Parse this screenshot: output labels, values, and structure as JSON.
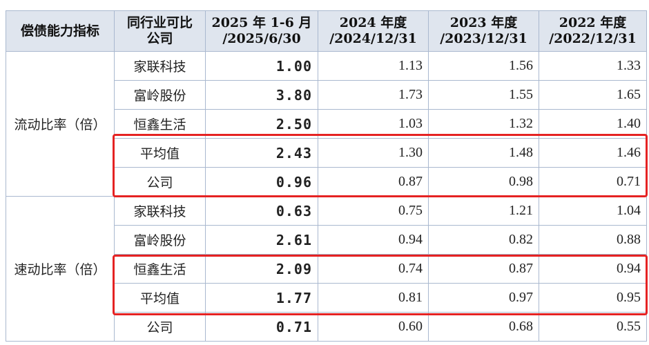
{
  "headers": [
    "偿债能力指标",
    "同行业可比公司",
    "2025 年 1-6 月 /2025/6/30",
    "2024 年度 /2024/12/31",
    "2023 年度 /2023/12/31",
    "2022 年度 /2022/12/31"
  ],
  "header_lines": [
    [
      "偿债能力指标"
    ],
    [
      "同行业可比",
      "公司"
    ],
    [
      "2025 年 1-6 月",
      "/2025/6/30"
    ],
    [
      "2024 年度",
      "/2024/12/31"
    ],
    [
      "2023 年度",
      "/2023/12/31"
    ],
    [
      "2022 年度",
      "/2022/12/31"
    ]
  ],
  "groups": [
    {
      "indicator": "流动比率（倍）",
      "rows": [
        [
          "家联科技",
          "1.00",
          "1.13",
          "1.56",
          "1.33"
        ],
        [
          "富岭股份",
          "3.80",
          "1.73",
          "1.55",
          "1.65"
        ],
        [
          "恒鑫生活",
          "2.50",
          "1.03",
          "1.32",
          "1.40"
        ],
        [
          "平均值",
          "2.43",
          "1.30",
          "1.48",
          "1.46"
        ],
        [
          "公司",
          "0.96",
          "0.87",
          "0.98",
          "0.71"
        ]
      ]
    },
    {
      "indicator": "速动比率（倍）",
      "rows": [
        [
          "家联科技",
          "0.63",
          "0.75",
          "1.21",
          "1.04"
        ],
        [
          "富岭股份",
          "2.61",
          "0.94",
          "0.82",
          "0.88"
        ],
        [
          "恒鑫生活",
          "2.09",
          "0.74",
          "0.87",
          "0.94"
        ],
        [
          "平均值",
          "1.77",
          "0.81",
          "0.97",
          "0.95"
        ],
        [
          "公司",
          "0.71",
          "0.60",
          "0.68",
          "0.55"
        ]
      ]
    }
  ],
  "highlight_color": "#e52222"
}
